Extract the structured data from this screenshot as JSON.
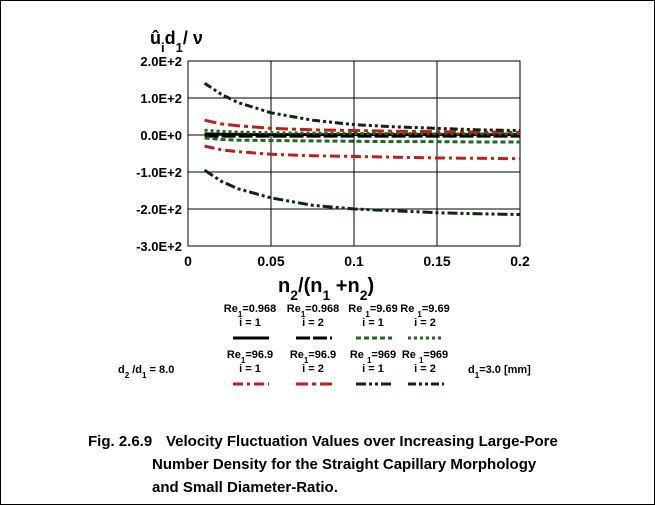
{
  "chart_data": {
    "type": "line",
    "y_label": [
      {
        "text": "û"
      },
      {
        "text": "i",
        "sub": true
      },
      {
        "text": "d"
      },
      {
        "text": "1",
        "sub": true
      },
      {
        "text": "/ ν"
      }
    ],
    "x_label": [
      {
        "text": "n"
      },
      {
        "text": "2",
        "sub": true
      },
      {
        "text": "/(n"
      },
      {
        "text": "1",
        "sub": true
      },
      {
        "text": " +n"
      },
      {
        "text": "2",
        "sub": true
      },
      {
        "text": ")"
      }
    ],
    "x": [
      0.01,
      0.02,
      0.03,
      0.05,
      0.075,
      0.1,
      0.125,
      0.15,
      0.175,
      0.2
    ],
    "xlim": [
      0,
      0.2
    ],
    "xticks": [
      0,
      0.05,
      0.1,
      0.15,
      0.2
    ],
    "ylim": [
      -300,
      200
    ],
    "yticks": [
      {
        "value": -300,
        "label": "-3.0E+2"
      },
      {
        "value": -200,
        "label": "-2.0E+2"
      },
      {
        "value": -100,
        "label": "-1.0E+2"
      },
      {
        "value": 0,
        "label": "0.0E+0"
      },
      {
        "value": 100,
        "label": "1.0E+2"
      },
      {
        "value": 200,
        "label": "2.0E+2"
      }
    ],
    "grid": true,
    "series": [
      {
        "name": [
          {
            "text": "Re"
          },
          {
            "text": "1",
            "sub": true
          },
          {
            "text": "=0.968"
          }
        ],
        "index_label": "i = 1",
        "color": "#000000",
        "dash": "none",
        "values": [
          3,
          2,
          2,
          1,
          1,
          1,
          1,
          1,
          1,
          1
        ]
      },
      {
        "name": [
          {
            "text": "Re"
          },
          {
            "text": "1",
            "sub": true
          },
          {
            "text": "=0.968"
          }
        ],
        "index_label": "i = 2",
        "color": "#000000",
        "dash": "14 3",
        "values": [
          -3,
          -3,
          -3,
          -3,
          -3,
          -3,
          -3,
          -3,
          -3,
          -3
        ]
      },
      {
        "name": [
          {
            "text": "Re "
          },
          {
            "text": "1",
            "sub": true
          },
          {
            "text": "=9.69"
          }
        ],
        "index_label": "i = 1",
        "color": "#1a6b1a",
        "dash": "5 3",
        "values": [
          -8,
          -12,
          -14,
          -15,
          -16,
          -17,
          -18,
          -18,
          -19,
          -19
        ]
      },
      {
        "name": [
          {
            "text": "Re "
          },
          {
            "text": "1",
            "sub": true
          },
          {
            "text": "=9.69"
          }
        ],
        "index_label": "i = 2",
        "color": "#1a6b1a",
        "dash": "3 3",
        "values": [
          13,
          10,
          8,
          6,
          5,
          4,
          4,
          3,
          3,
          3
        ]
      },
      {
        "name": [
          {
            "text": "Re"
          },
          {
            "text": "1",
            "sub": true
          },
          {
            "text": "=96.9"
          }
        ],
        "index_label": "i = 1",
        "color": "#c0201a",
        "dash": "10 4 3 4",
        "values": [
          -30,
          -40,
          -45,
          -52,
          -56,
          -58,
          -60,
          -62,
          -63,
          -64
        ]
      },
      {
        "name": [
          {
            "text": "Re"
          },
          {
            "text": "1",
            "sub": true
          },
          {
            "text": "=96.9"
          }
        ],
        "index_label": "i = 2",
        "color": "#c0201a",
        "dash": "12 4 4 4",
        "values": [
          40,
          30,
          25,
          18,
          14,
          12,
          10,
          9,
          8,
          7
        ]
      },
      {
        "name": [
          {
            "text": "Re "
          },
          {
            "text": "1",
            "sub": true
          },
          {
            "text": "=969"
          }
        ],
        "index_label": "i = 1",
        "color": "#0a2a0a",
        "dash": "10 3 3 3 3 3",
        "values": [
          -95,
          -125,
          -145,
          -170,
          -190,
          -200,
          -205,
          -210,
          -213,
          -215
        ]
      },
      {
        "name": [
          {
            "text": "Re "
          },
          {
            "text": "1",
            "sub": true
          },
          {
            "text": "=969"
          }
        ],
        "index_label": "i = 2",
        "color": "#0a2a0a",
        "dash": "8 3 3 3 3 3",
        "values": [
          140,
          110,
          88,
          60,
          40,
          28,
          22,
          18,
          14,
          12
        ]
      }
    ],
    "annotations": [
      [
        {
          "text": "d"
        },
        {
          "text": "2",
          "sub": true
        },
        {
          "text": " /d"
        },
        {
          "text": "1",
          "sub": true
        },
        {
          "text": " = 8.0"
        }
      ],
      [
        {
          "text": "d"
        },
        {
          "text": "1",
          "sub": true
        },
        {
          "text": "=3.0 [mm]"
        }
      ]
    ],
    "caption": {
      "label": "Fig. 2.6.9",
      "lines": [
        "Velocity Fluctuation Values over Increasing Large-Pore",
        "Number Density for the Straight Capillary Morphology",
        "and Small Diameter-Ratio."
      ]
    }
  }
}
